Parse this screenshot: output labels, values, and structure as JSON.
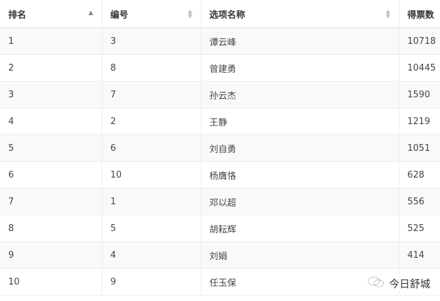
{
  "table": {
    "columns": [
      {
        "label": "排名",
        "sort": "ascending"
      },
      {
        "label": "编号",
        "sort": "none"
      },
      {
        "label": "选项名称",
        "sort": "none"
      },
      {
        "label": "得票数",
        "sort": "none"
      }
    ],
    "rows": [
      [
        "1",
        "3",
        "谭云峰",
        "10718"
      ],
      [
        "2",
        "8",
        "曾建勇",
        "10445"
      ],
      [
        "3",
        "7",
        "孙云杰",
        "1590"
      ],
      [
        "4",
        "2",
        "王静",
        "1219"
      ],
      [
        "5",
        "6",
        "刘自勇",
        "1051"
      ],
      [
        "6",
        "10",
        "杨膺恪",
        "628"
      ],
      [
        "7",
        "1",
        "邓以超",
        "556"
      ],
      [
        "8",
        "5",
        "胡耘辉",
        "525"
      ],
      [
        "9",
        "4",
        "刘娟",
        "414"
      ],
      [
        "10",
        "9",
        "任玉保",
        ""
      ]
    ]
  },
  "watermark": {
    "text": "今日舒城",
    "icon": "wechat-icon"
  }
}
